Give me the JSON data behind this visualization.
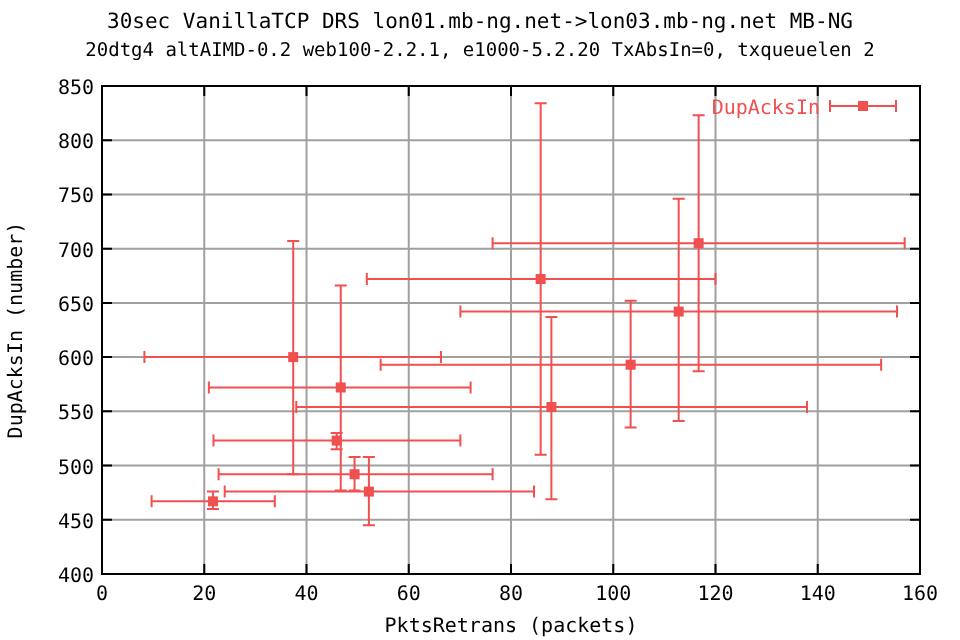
{
  "chart_data": {
    "type": "scatter",
    "title": "30sec VanillaTCP DRS lon01.mb-ng.net->lon03.mb-ng.net MB-NG",
    "subtitle": "20dtg4 altAIMD-0.2 web100-2.2.1, e1000-5.2.20 TxAbsIn=0, txqueuelen 2",
    "xlabel": "PktsRetrans (packets)",
    "ylabel": "DupAcksIn (number)",
    "xlim": [
      0,
      160
    ],
    "xticks": [
      0,
      20,
      40,
      60,
      80,
      100,
      120,
      140,
      160
    ],
    "ylim": [
      400,
      850
    ],
    "yticks": [
      400,
      450,
      500,
      550,
      600,
      650,
      700,
      750,
      800,
      850
    ],
    "grid": true,
    "legend": "top right",
    "marker": "square",
    "series": [
      {
        "name": "DupAcksIn",
        "color": "#f05050",
        "x": [
          37.4,
          46.7,
          45.9,
          49.4,
          52.2,
          21.7,
          87.9,
          103.4,
          85.8,
          112.8,
          116.7
        ],
        "values": [
          600,
          572,
          523,
          492,
          476,
          467,
          554,
          593,
          672,
          642,
          705
        ],
        "errors": [
          [
            492,
            707
          ],
          [
            477,
            666
          ],
          [
            515,
            530
          ],
          [
            477,
            508
          ],
          [
            445,
            508
          ],
          [
            460,
            476
          ],
          [
            469,
            637
          ],
          [
            535,
            652
          ],
          [
            510,
            834
          ],
          [
            541,
            746
          ],
          [
            587,
            823
          ]
        ],
        "xerrors": [
          [
            8.3,
            66.3
          ],
          [
            20.9,
            72.1
          ],
          [
            21.8,
            70.1
          ],
          [
            22.8,
            76.4
          ],
          [
            24,
            84.5
          ],
          [
            9.7,
            33.8
          ],
          [
            38,
            137.9
          ],
          [
            54.5,
            152.4
          ],
          [
            51.8,
            120
          ],
          [
            70.1,
            155.5
          ],
          [
            76.4,
            157
          ]
        ]
      }
    ]
  }
}
